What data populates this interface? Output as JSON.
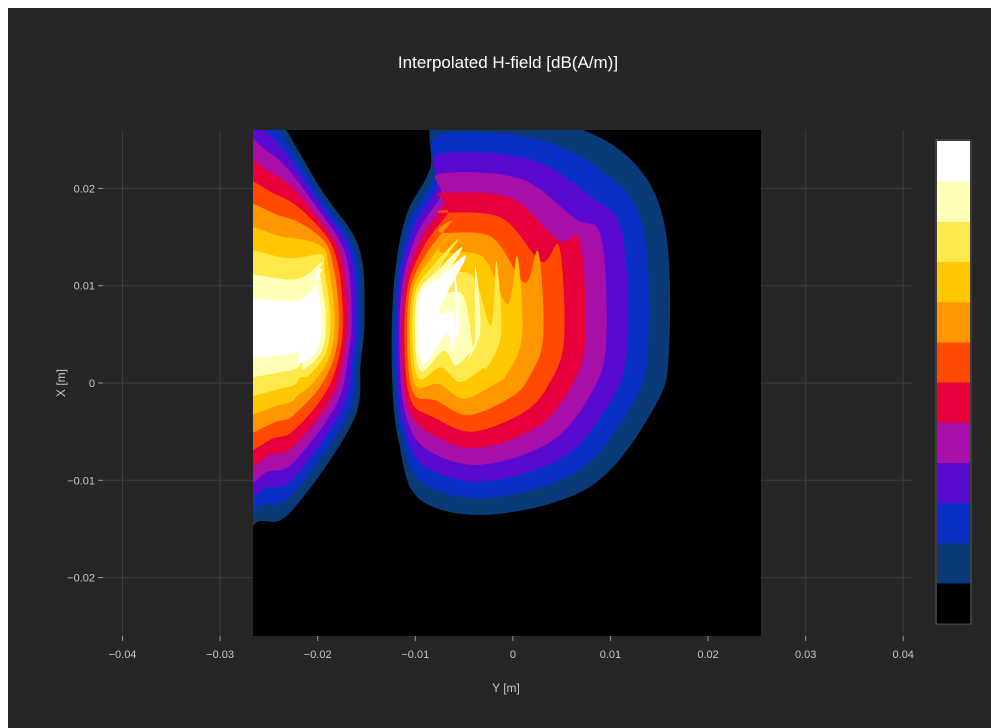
{
  "chart_data": {
    "type": "heatmap",
    "title": "Interpolated H-field [dB(A/m)]",
    "xlabel": "Y [m]",
    "ylabel": "X [m]",
    "xlim": [
      -0.042,
      0.041
    ],
    "ylim": [
      -0.026,
      0.026
    ],
    "data_extent": {
      "x": [
        -0.026,
        0.026
      ],
      "y": [
        -0.026,
        0.026
      ]
    },
    "x_ticks": [
      -0.04,
      -0.03,
      -0.02,
      -0.01,
      0,
      0.01,
      0.02,
      0.03,
      0.04
    ],
    "x_tick_labels": [
      "−0.04",
      "−0.03",
      "−0.02",
      "−0.01",
      "0",
      "0.01",
      "0.02",
      "0.03",
      "0.04"
    ],
    "y_ticks": [
      0.02,
      0.01,
      0,
      -0.01,
      -0.02
    ],
    "y_tick_labels": [
      "0.02",
      "0.01",
      "0",
      "−0.01",
      "−0.02"
    ],
    "grid": true,
    "colorbar": {
      "position": "right",
      "levels_low_to_high": [
        "#000000",
        "#0a3a78",
        "#0a2fc4",
        "#5a0ad0",
        "#a80fa8",
        "#e8003c",
        "#ff4a00",
        "#ff9800",
        "#ffc800",
        "#ffe84a",
        "#ffffb8",
        "#ffffff"
      ]
    },
    "lobes": [
      {
        "name": "left",
        "center": [
          -0.0215,
          0.007
        ],
        "peak_level": 11
      },
      {
        "name": "right",
        "center": [
          -0.0065,
          0.0075
        ],
        "peak_level": 11
      }
    ]
  }
}
